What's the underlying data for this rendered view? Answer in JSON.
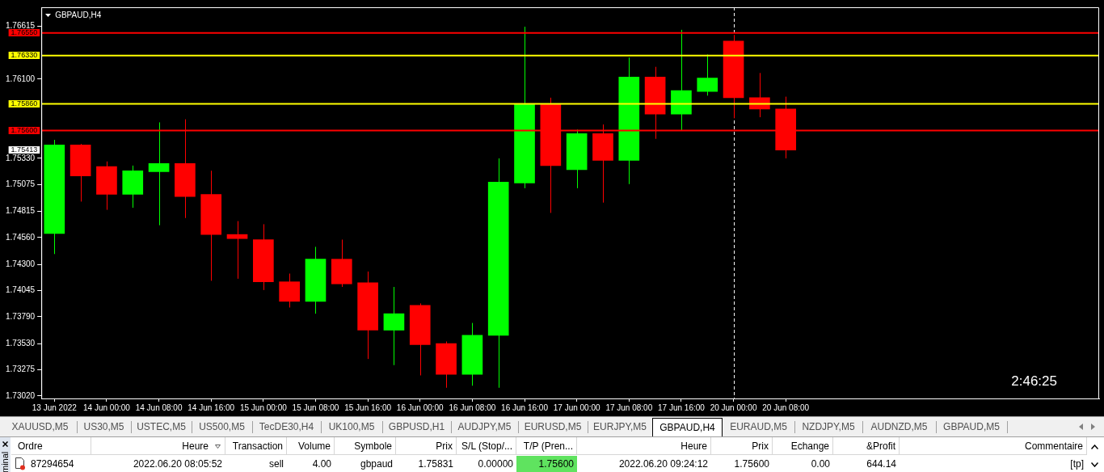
{
  "chart_data": {
    "type": "candlestick",
    "title": "GBPAUD,H4",
    "categories": [
      "13 Jun 2022",
      null,
      "14 Jun 00:00",
      null,
      "14 Jun 08:00",
      null,
      "14 Jun 16:00",
      null,
      "15 Jun 00:00",
      null,
      "15 Jun 08:00",
      null,
      "15 Jun 16:00",
      null,
      "16 Jun 00:00",
      null,
      "16 Jun 08:00",
      null,
      "16 Jun 16:00",
      null,
      "17 Jun 00:00",
      null,
      "17 Jun 08:00",
      null,
      "17 Jun 16:00",
      null,
      "20 Jun 00:00",
      null,
      "20 Jun 08:00"
    ],
    "ohlc": [
      [
        1.746,
        1.7551,
        1.744,
        1.7546
      ],
      [
        1.7546,
        1.7547,
        1.7491,
        1.7516
      ],
      [
        1.7525,
        1.753,
        1.7483,
        1.7498
      ],
      [
        1.7498,
        1.7526,
        1.7485,
        1.7521
      ],
      [
        1.752,
        1.7568,
        1.7468,
        1.7528
      ],
      [
        1.7528,
        1.7571,
        1.7475,
        1.7496
      ],
      [
        1.7498,
        1.7521,
        1.7414,
        1.7459
      ],
      [
        1.7459,
        1.7472,
        1.7416,
        1.7455
      ],
      [
        1.7454,
        1.7469,
        1.7405,
        1.7413
      ],
      [
        1.7413,
        1.7421,
        1.7388,
        1.7394
      ],
      [
        1.7394,
        1.7447,
        1.7382,
        1.7435
      ],
      [
        1.7435,
        1.7454,
        1.7408,
        1.7411
      ],
      [
        1.7412,
        1.7423,
        1.7338,
        1.7366
      ],
      [
        1.7366,
        1.7408,
        1.7332,
        1.7382
      ],
      [
        1.739,
        1.7392,
        1.7322,
        1.7352
      ],
      [
        1.7353,
        1.7355,
        1.731,
        1.7323
      ],
      [
        1.7323,
        1.7373,
        1.7312,
        1.7361
      ],
      [
        1.7361,
        1.7533,
        1.731,
        1.751
      ],
      [
        1.7509,
        1.7661,
        1.7504,
        1.7586
      ],
      [
        1.7586,
        1.7592,
        1.748,
        1.7526
      ],
      [
        1.7522,
        1.7561,
        1.7504,
        1.7557
      ],
      [
        1.7557,
        1.7566,
        1.749,
        1.7531
      ],
      [
        1.7531,
        1.7631,
        1.7508,
        1.7612
      ],
      [
        1.7612,
        1.7622,
        1.7552,
        1.7576
      ],
      [
        1.7576,
        1.7658,
        1.756,
        1.7599
      ],
      [
        1.7598,
        1.7634,
        1.7594,
        1.7611
      ],
      [
        1.7647,
        1.7653,
        1.7572,
        1.7592
      ],
      [
        1.7592,
        1.7616,
        1.7573,
        1.7581
      ],
      [
        1.7581,
        1.7593,
        1.7533,
        1.7541
      ]
    ],
    "colors": [
      "#00ff00",
      "#ff0000",
      "#ff0000",
      "#00ff00",
      "#00ff00",
      "#ff0000",
      "#ff0000",
      "#ff0000",
      "#ff0000",
      "#ff0000",
      "#00ff00",
      "#ff0000",
      "#ff0000",
      "#00ff00",
      "#ff0000",
      "#ff0000",
      "#00ff00",
      "#00ff00",
      "#00ff00",
      "#ff0000",
      "#00ff00",
      "#ff0000",
      "#00ff00",
      "#ff0000",
      "#00ff00",
      "#00ff00",
      "#ff0000",
      "#ff0000",
      "#ff0000"
    ],
    "ylim": [
      1.72996,
      1.76799
    ],
    "yticks": [
      {
        "value": 1.7302,
        "label": "1.73020"
      },
      1.73275,
      {
        "value": 1.7353,
        "label": "1.73530"
      },
      {
        "value": 1.7379,
        "label": "1.73790"
      },
      1.74045,
      {
        "value": 1.743,
        "label": "1.74300"
      },
      {
        "value": 1.7456,
        "label": "1.74560"
      },
      1.74815,
      1.75075,
      {
        "value": 1.7533,
        "label": "1.75330"
      },
      {
        "value": 1.761,
        "label": "1.76100"
      },
      1.76615
    ],
    "ref_lines": [
      {
        "axis": "y",
        "value": 1.7655,
        "label": "1.76550",
        "color": "#ff0000"
      },
      {
        "axis": "y",
        "value": 1.7633,
        "label": "1.76330",
        "color": "#ffff00"
      },
      {
        "axis": "y",
        "value": 1.7586,
        "label": "1.75860",
        "color": "#ffff00"
      },
      {
        "axis": "y",
        "value": 1.756,
        "label": "1.75600",
        "color": "#ff0000"
      },
      {
        "axis": "x",
        "value": "20 Jun 00:00",
        "color": "#ffffff",
        "line_style": "dashed"
      }
    ],
    "annotations": [
      "1.75413",
      "2:46:25",
      "minal",
      "XAUUSD,M5",
      "US30,M5",
      "USTEC,M5",
      "US500,M5",
      "TecDE30,H4",
      "UK100,M5",
      "GBPUSD,H1",
      "AUDJPY,M5",
      "EURUSD,M5",
      "EURJPY,M5",
      "GBPAUD,H4",
      "EURAUD,M5",
      "NZDJPY,M5",
      "AUDNZD,M5",
      "GBPAUD,M5",
      "Ordre",
      "Heure",
      "Transaction",
      "Volume",
      "Symbole",
      "Prix",
      "S/L (Stop/...",
      "T/P (Pren...",
      "Heure",
      "Prix",
      "Echange",
      "&Profit",
      "Commentaire",
      "87294654",
      "2022.06.20 08:05:52",
      "sell",
      "4.00",
      "gbpaud",
      "1.75831",
      "0.00000",
      "1.75600",
      "2022.06.20 09:24:12",
      "1.75600",
      "0.00",
      "644.14",
      "[tp]"
    ]
  }
}
